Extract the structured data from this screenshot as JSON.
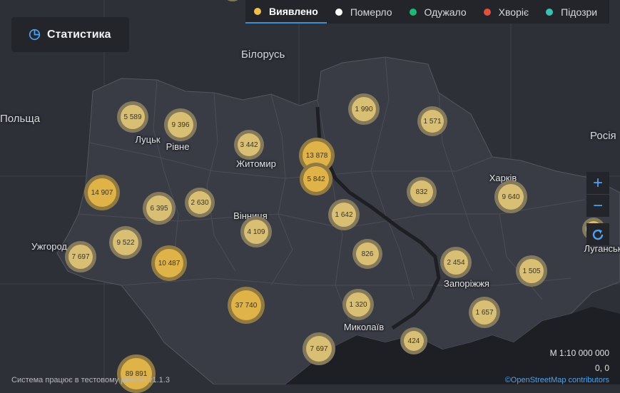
{
  "legend": {
    "tabs": [
      {
        "label": "Виявлено",
        "color": "#f0c04a",
        "active": true
      },
      {
        "label": "Померло",
        "color": "#ffffff",
        "active": false
      },
      {
        "label": "Одужало",
        "color": "#1fb877",
        "active": false
      },
      {
        "label": "Хворіє",
        "color": "#e0523c",
        "active": false
      },
      {
        "label": "Підозри",
        "color": "#39c1b4",
        "active": false
      }
    ]
  },
  "stats_button": {
    "label": "Статистика",
    "icon": "pie-chart-icon"
  },
  "map": {
    "countries": [
      "Білорусь",
      "Польща",
      "Росія"
    ],
    "cities": [
      "Луцьк",
      "Рівне",
      "Житомир",
      "Вінниця",
      "Ужгород",
      "Харків",
      "Запоріжжя",
      "Миколаїв",
      "Луганськ"
    ],
    "clusters": [
      "5 589",
      "9 396",
      "3 442",
      "13 878",
      "5 842",
      "1 990",
      "1 571",
      "14 907",
      "6 395",
      "2 630",
      "832",
      "9 640",
      "1 642",
      "4 109",
      "9 522",
      "7 697",
      "10 487",
      "826",
      "2 454",
      "1 505",
      "37 740",
      "1 320",
      "1 657",
      "7 697",
      "424",
      "89 891"
    ]
  },
  "controls": {
    "zoom_in": "+",
    "zoom_out": "−",
    "refresh_icon": "refresh-icon"
  },
  "scale": "М 1:10 000 000",
  "coords": "0, 0",
  "footer": {
    "status": "Система працює в тестовому режимі v1.1.3",
    "attribution": "©OpenStreetMap contributors"
  }
}
